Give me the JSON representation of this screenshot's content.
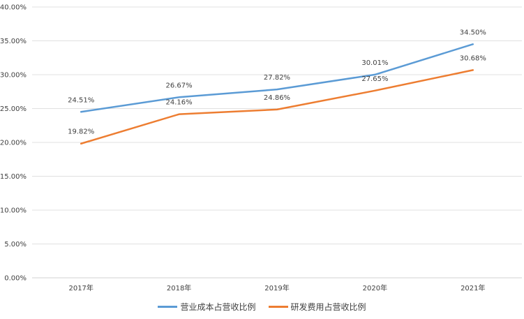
{
  "chart_data": {
    "type": "line",
    "categories": [
      "2017年",
      "2018年",
      "2019年",
      "2020年",
      "2021年"
    ],
    "ylim": [
      0,
      0.4
    ],
    "yticks": [
      "0.00%",
      "5.00%",
      "10.00%",
      "15.00%",
      "20.00%",
      "25.00%",
      "30.00%",
      "35.00%",
      "40.00%"
    ],
    "grid": true,
    "legend_position": "bottom",
    "series": [
      {
        "name": "营业成本占营收比例",
        "color": "#5B9BD5",
        "values": [
          0.2451,
          0.2667,
          0.2782,
          0.3001,
          0.345
        ],
        "labels": [
          "24.51%",
          "26.67%",
          "27.82%",
          "30.01%",
          "34.50%"
        ]
      },
      {
        "name": "研发费用占营收比例",
        "color": "#ED7D31",
        "values": [
          0.1982,
          0.2416,
          0.2486,
          0.2765,
          0.3068
        ],
        "labels": [
          "19.82%",
          "24.16%",
          "24.86%",
          "27.65%",
          "30.68%"
        ]
      }
    ]
  }
}
